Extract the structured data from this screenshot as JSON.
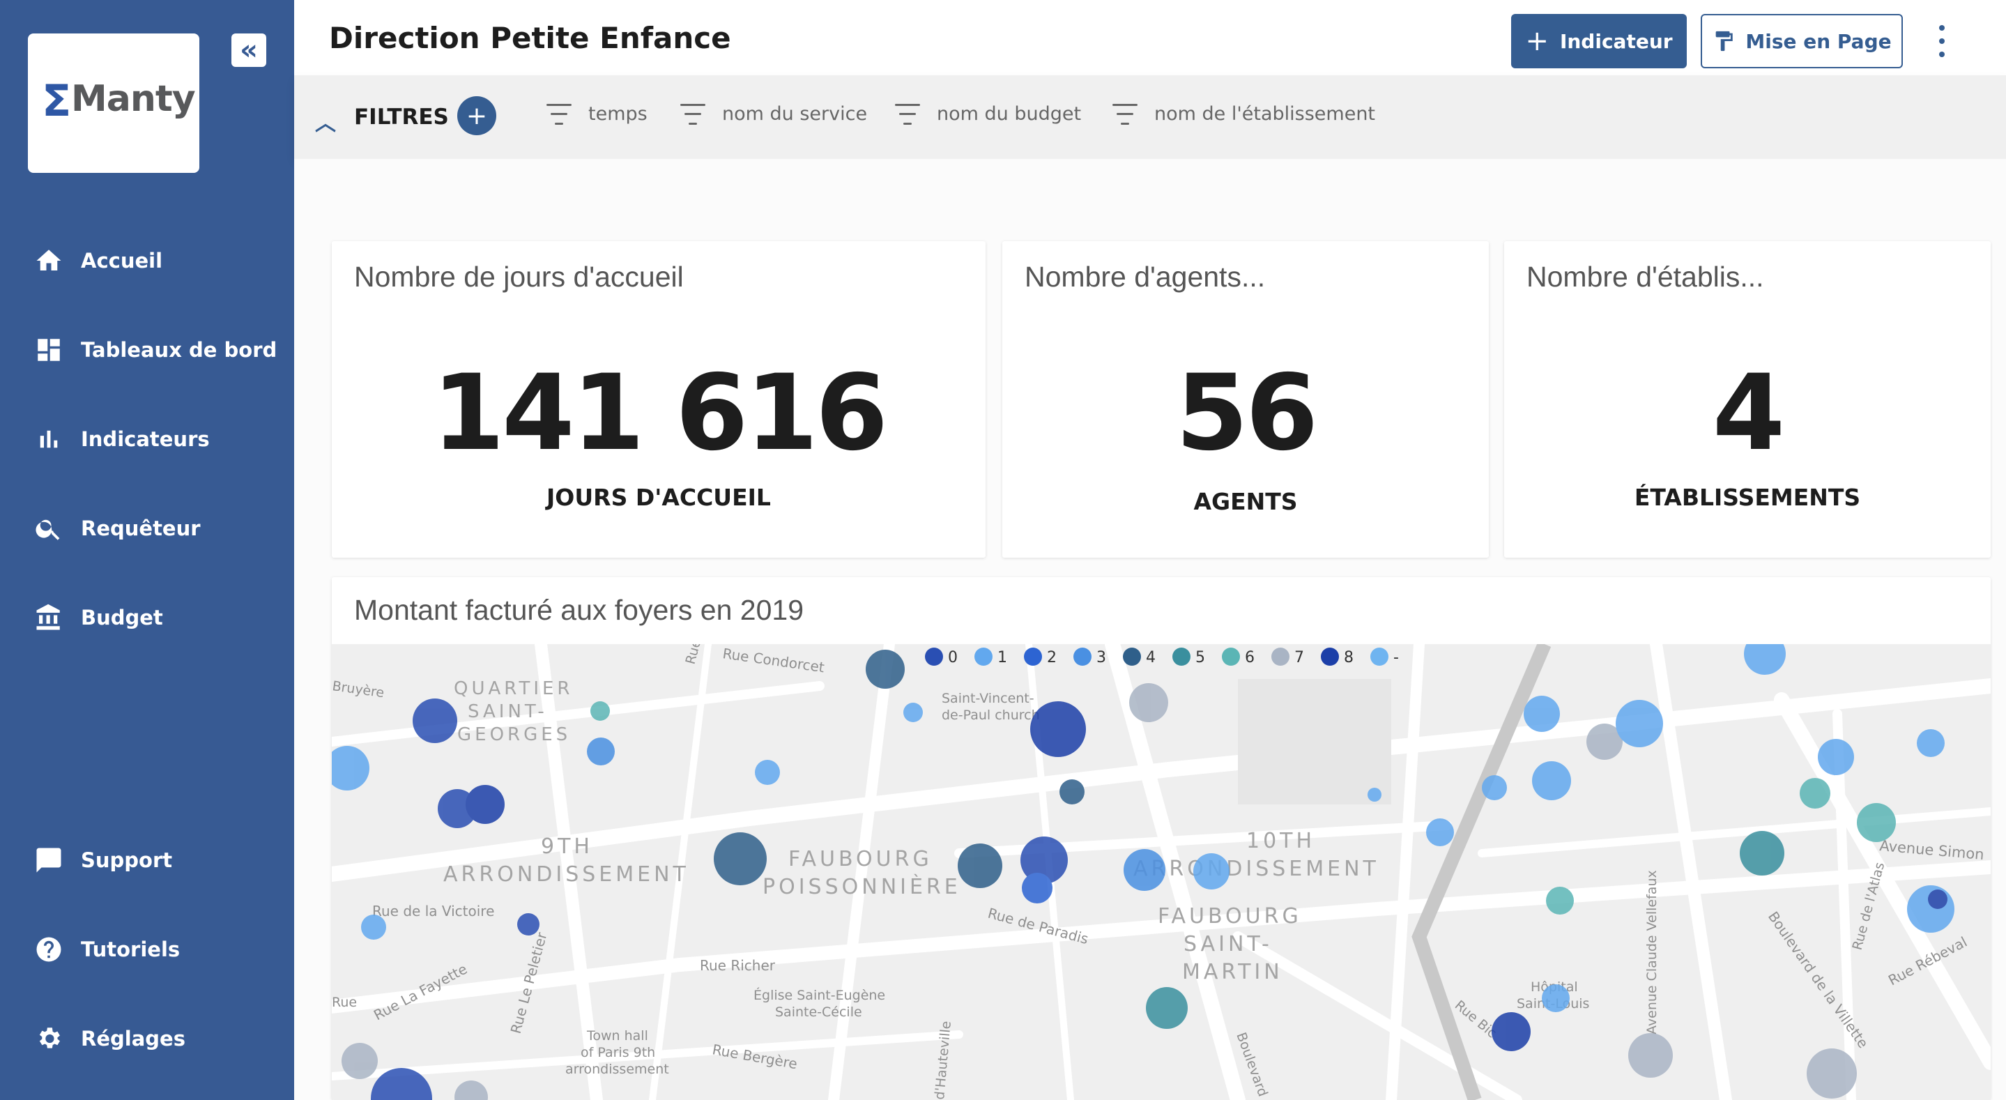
{
  "sidebar": {
    "logo_text": "Manty",
    "collapse_icon": "chevron-double-left-icon",
    "nav": [
      {
        "label": "Accueil",
        "icon": "home-icon"
      },
      {
        "label": "Tableaux de bord",
        "icon": "dashboard-icon"
      },
      {
        "label": "Indicateurs",
        "icon": "bar-chart-icon"
      },
      {
        "label": "Requêteur",
        "icon": "search-icon"
      },
      {
        "label": "Budget",
        "icon": "bank-icon"
      }
    ],
    "bottom": [
      {
        "label": "Support",
        "icon": "chat-icon"
      },
      {
        "label": "Tutoriels",
        "icon": "help-icon"
      },
      {
        "label": "Réglages",
        "icon": "gear-icon"
      }
    ]
  },
  "header": {
    "title": "Direction Petite Enfance",
    "indicateur_button": "Indicateur",
    "mise_en_page_button": "Mise en Page"
  },
  "filters": {
    "label": "FILTRES",
    "chips": [
      "temps",
      "nom du service",
      "nom du budget",
      "nom de l'établissement"
    ]
  },
  "kpis": [
    {
      "title": "Nombre de jours d'accueil",
      "value": "141 616",
      "label": "JOURS D'ACCUEIL"
    },
    {
      "title": "Nombre d'agents...",
      "value": "56",
      "label": "AGENTS"
    },
    {
      "title": "Nombre d'établis...",
      "value": "4",
      "label": "ÉTABLISSEMENTS"
    }
  ],
  "map": {
    "title": "Montant facturé aux foyers en 2019",
    "legend": [
      {
        "label": "0",
        "color": "#2a4fb3"
      },
      {
        "label": "1",
        "color": "#62a8ee"
      },
      {
        "label": "2",
        "color": "#2d64d2"
      },
      {
        "label": "3",
        "color": "#4a90e2"
      },
      {
        "label": "4",
        "color": "#2f5f8a"
      },
      {
        "label": "5",
        "color": "#3a8f9e"
      },
      {
        "label": "6",
        "color": "#5bb5b5"
      },
      {
        "label": "7",
        "color": "#a9b4c4"
      },
      {
        "label": "8",
        "color": "#1c3fa8"
      },
      {
        "label": "-",
        "color": "#6fb4f0"
      }
    ],
    "districts": [
      "QUARTIER",
      "SAINT-",
      "GEORGES",
      "9TH",
      "ARRONDISSEMENT",
      "FAUBOURG",
      "POISSONNIÈRE",
      "10TH",
      "ARRONDISSEMENT",
      "FAUBOURG",
      "SAINT-",
      "MARTIN"
    ],
    "streets": [
      "Rue Condorcet",
      "Saint-Vincent-",
      "de-Paul church",
      "Rue de la Victoire",
      "Rue La Fayette",
      "Rue Le Peletier",
      "Rue Richer",
      "Église Saint-Eugène",
      "Sainte-Cécile",
      "Town hall",
      "of Paris 9th",
      "arrondissement",
      "Rue Bergère",
      "Rue de Paradis",
      "Avenue Claude Vellefaux",
      "Hôpital",
      "Saint-Louis",
      "Avenue Simon",
      "Boulevard de la Villette",
      "Rue Rébeval",
      "Rue de l'Atlas",
      "Bruyère",
      "Rue",
      "d'Hauteville",
      "Boulevard",
      "Rue Bic",
      "Rue"
    ]
  }
}
